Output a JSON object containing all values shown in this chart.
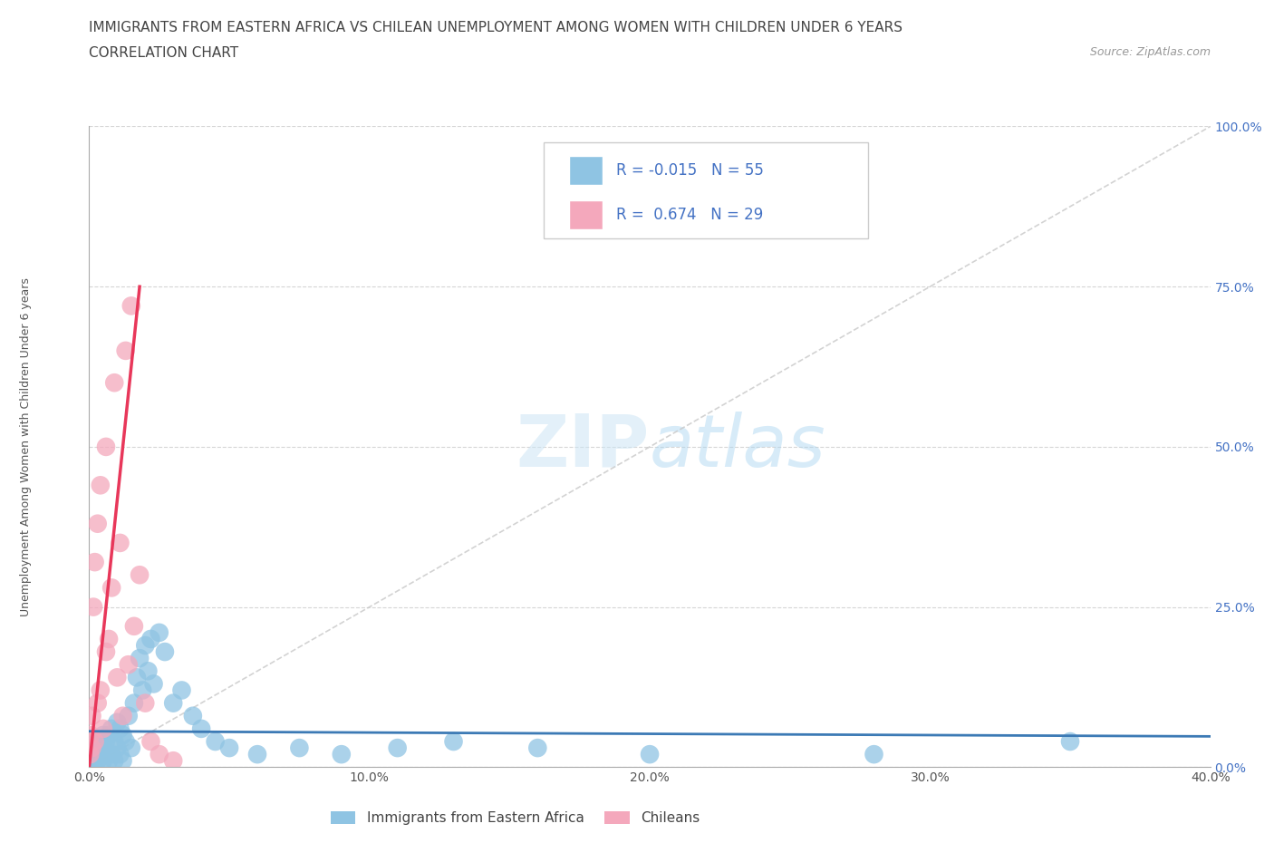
{
  "title_line1": "IMMIGRANTS FROM EASTERN AFRICA VS CHILEAN UNEMPLOYMENT AMONG WOMEN WITH CHILDREN UNDER 6 YEARS",
  "title_line2": "CORRELATION CHART",
  "source_text": "Source: ZipAtlas.com",
  "ylabel": "Unemployment Among Women with Children Under 6 years",
  "xlim": [
    0.0,
    0.4
  ],
  "ylim": [
    0.0,
    1.0
  ],
  "xticks": [
    0.0,
    0.1,
    0.2,
    0.3,
    0.4
  ],
  "yticks": [
    0.0,
    0.25,
    0.5,
    0.75,
    1.0
  ],
  "xtick_labels": [
    "0.0%",
    "10.0%",
    "20.0%",
    "30.0%",
    "40.0%"
  ],
  "ytick_labels": [
    "0.0%",
    "25.0%",
    "50.0%",
    "75.0%",
    "100.0%"
  ],
  "color_blue": "#8fc4e3",
  "color_pink": "#f4a8bc",
  "color_blue_line": "#3c7ab5",
  "color_pink_line": "#e8375a",
  "color_grey_dash": "#c8c8c8",
  "R_blue": -0.015,
  "N_blue": 55,
  "R_pink": 0.674,
  "N_pink": 29,
  "legend_label_blue": "Immigrants from Eastern Africa",
  "legend_label_pink": "Chileans",
  "watermark_zip": "ZIP",
  "watermark_atlas": "atlas",
  "title_fontsize": 11,
  "subtitle_fontsize": 11,
  "axis_label_fontsize": 9,
  "tick_fontsize": 10,
  "legend_fontsize": 11,
  "tick_color_y": "#4472c4",
  "tick_color_x": "#555555",
  "blue_scatter_x": [
    0.0005,
    0.001,
    0.0015,
    0.002,
    0.002,
    0.003,
    0.003,
    0.003,
    0.004,
    0.004,
    0.005,
    0.005,
    0.005,
    0.006,
    0.006,
    0.007,
    0.007,
    0.008,
    0.008,
    0.009,
    0.009,
    0.01,
    0.01,
    0.011,
    0.011,
    0.012,
    0.012,
    0.013,
    0.014,
    0.015,
    0.016,
    0.017,
    0.018,
    0.019,
    0.02,
    0.021,
    0.022,
    0.023,
    0.025,
    0.027,
    0.03,
    0.033,
    0.037,
    0.04,
    0.045,
    0.05,
    0.06,
    0.075,
    0.09,
    0.11,
    0.13,
    0.16,
    0.2,
    0.28,
    0.35
  ],
  "blue_scatter_y": [
    0.01,
    0.02,
    0.01,
    0.03,
    0.01,
    0.02,
    0.04,
    0.01,
    0.02,
    0.03,
    0.01,
    0.03,
    0.05,
    0.02,
    0.04,
    0.01,
    0.05,
    0.02,
    0.06,
    0.01,
    0.04,
    0.03,
    0.07,
    0.02,
    0.06,
    0.01,
    0.05,
    0.04,
    0.08,
    0.03,
    0.1,
    0.14,
    0.17,
    0.12,
    0.19,
    0.15,
    0.2,
    0.13,
    0.21,
    0.18,
    0.1,
    0.12,
    0.08,
    0.06,
    0.04,
    0.03,
    0.02,
    0.03,
    0.02,
    0.03,
    0.04,
    0.03,
    0.02,
    0.02,
    0.04
  ],
  "pink_scatter_x": [
    0.0003,
    0.0005,
    0.001,
    0.001,
    0.0015,
    0.002,
    0.002,
    0.003,
    0.003,
    0.004,
    0.004,
    0.005,
    0.006,
    0.006,
    0.007,
    0.008,
    0.009,
    0.01,
    0.011,
    0.012,
    0.013,
    0.014,
    0.015,
    0.016,
    0.018,
    0.02,
    0.022,
    0.025,
    0.03
  ],
  "pink_scatter_y": [
    0.02,
    0.05,
    0.03,
    0.08,
    0.25,
    0.04,
    0.32,
    0.1,
    0.38,
    0.12,
    0.44,
    0.06,
    0.18,
    0.5,
    0.2,
    0.28,
    0.6,
    0.14,
    0.35,
    0.08,
    0.65,
    0.16,
    0.72,
    0.22,
    0.3,
    0.1,
    0.04,
    0.02,
    0.01
  ]
}
